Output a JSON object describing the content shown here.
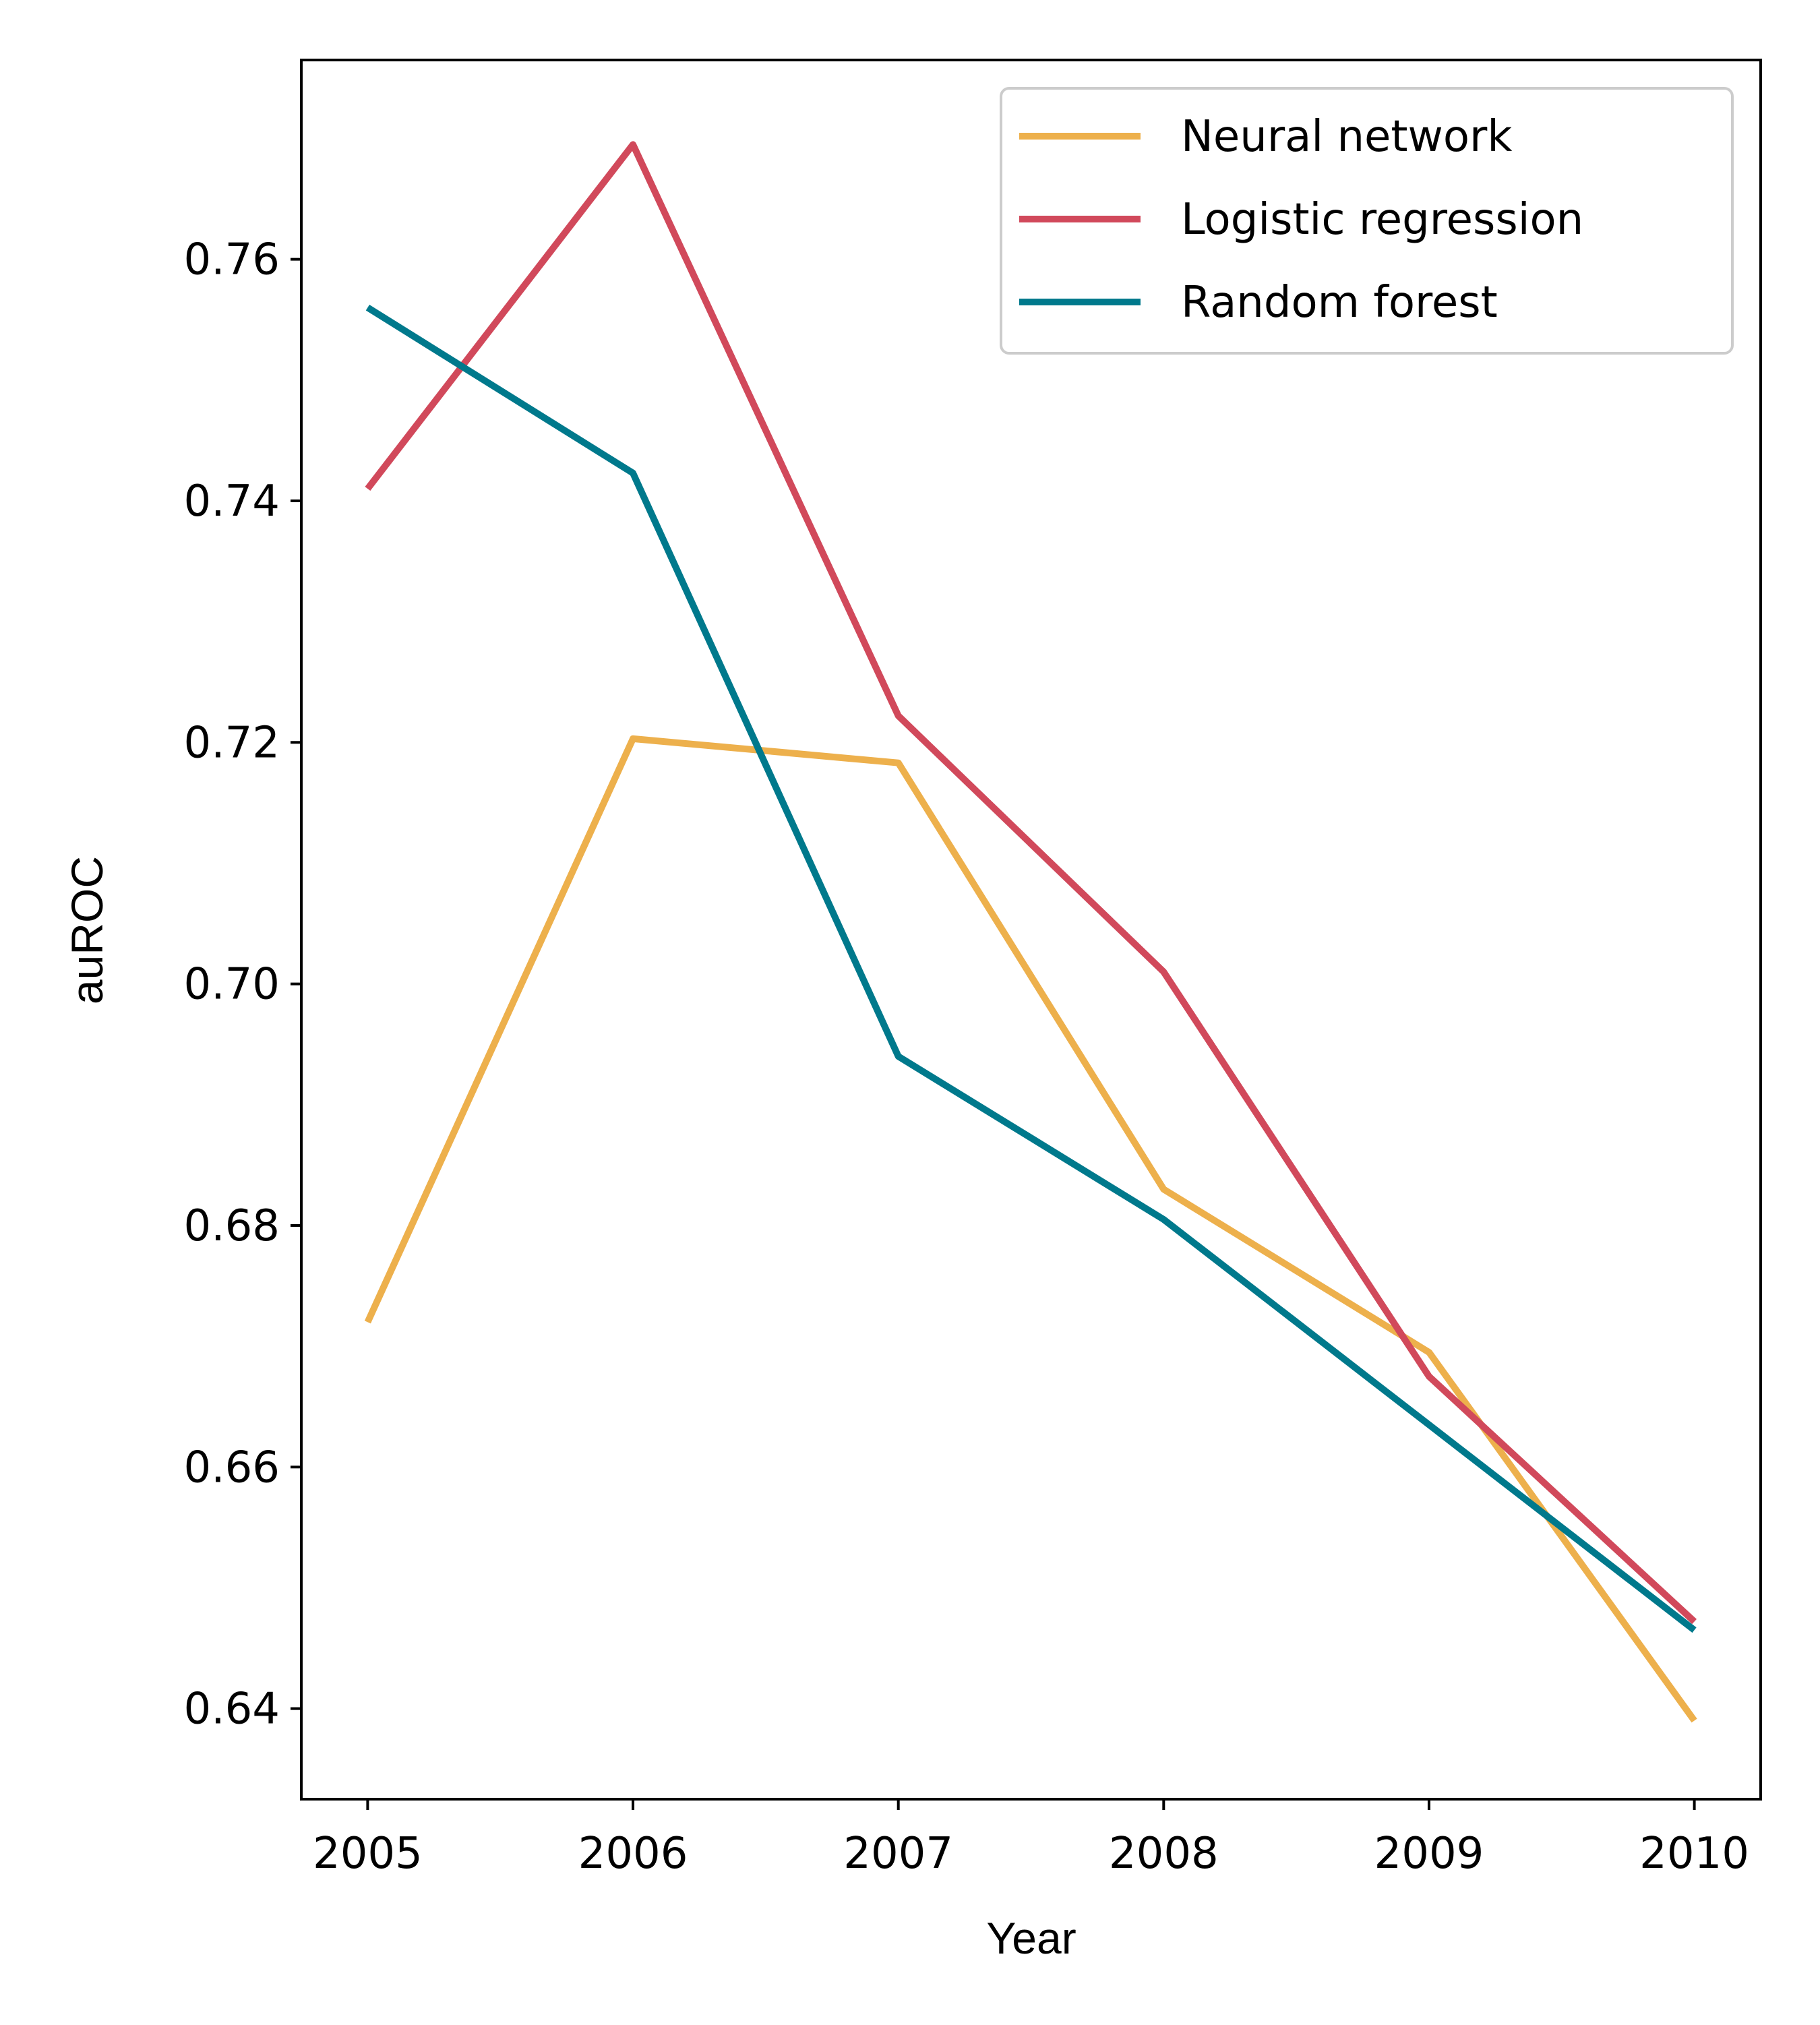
{
  "chart_data": {
    "type": "line",
    "title": "",
    "xlabel": "Year",
    "ylabel": "auROC",
    "x": [
      2005,
      2006,
      2007,
      2008,
      2009,
      2010
    ],
    "x_tick_labels": [
      "2005",
      "2006",
      "2007",
      "2008",
      "2009",
      "2010"
    ],
    "y_ticks": [
      0.64,
      0.66,
      0.68,
      0.7,
      0.72,
      0.74,
      0.76
    ],
    "y_tick_labels": [
      "0.64",
      "0.66",
      "0.68",
      "0.70",
      "0.72",
      "0.74",
      "0.76"
    ],
    "xlim": [
      2004.75,
      2010.25
    ],
    "ylim": [
      0.6325,
      0.7765
    ],
    "grid": false,
    "legend_position": "top-right",
    "series": [
      {
        "name": "Neural network",
        "color": "#EDB04C",
        "values": [
          0.672,
          0.7203,
          0.7183,
          0.683,
          0.6695,
          0.639
        ]
      },
      {
        "name": "Logistic regression",
        "color": "#D1495B",
        "values": [
          0.741,
          0.7695,
          0.7222,
          0.701,
          0.6675,
          0.6472
        ]
      },
      {
        "name": "Random forest",
        "color": "#00798C",
        "values": [
          0.756,
          0.7423,
          0.694,
          0.6805,
          0.6635,
          0.6465
        ]
      }
    ]
  }
}
